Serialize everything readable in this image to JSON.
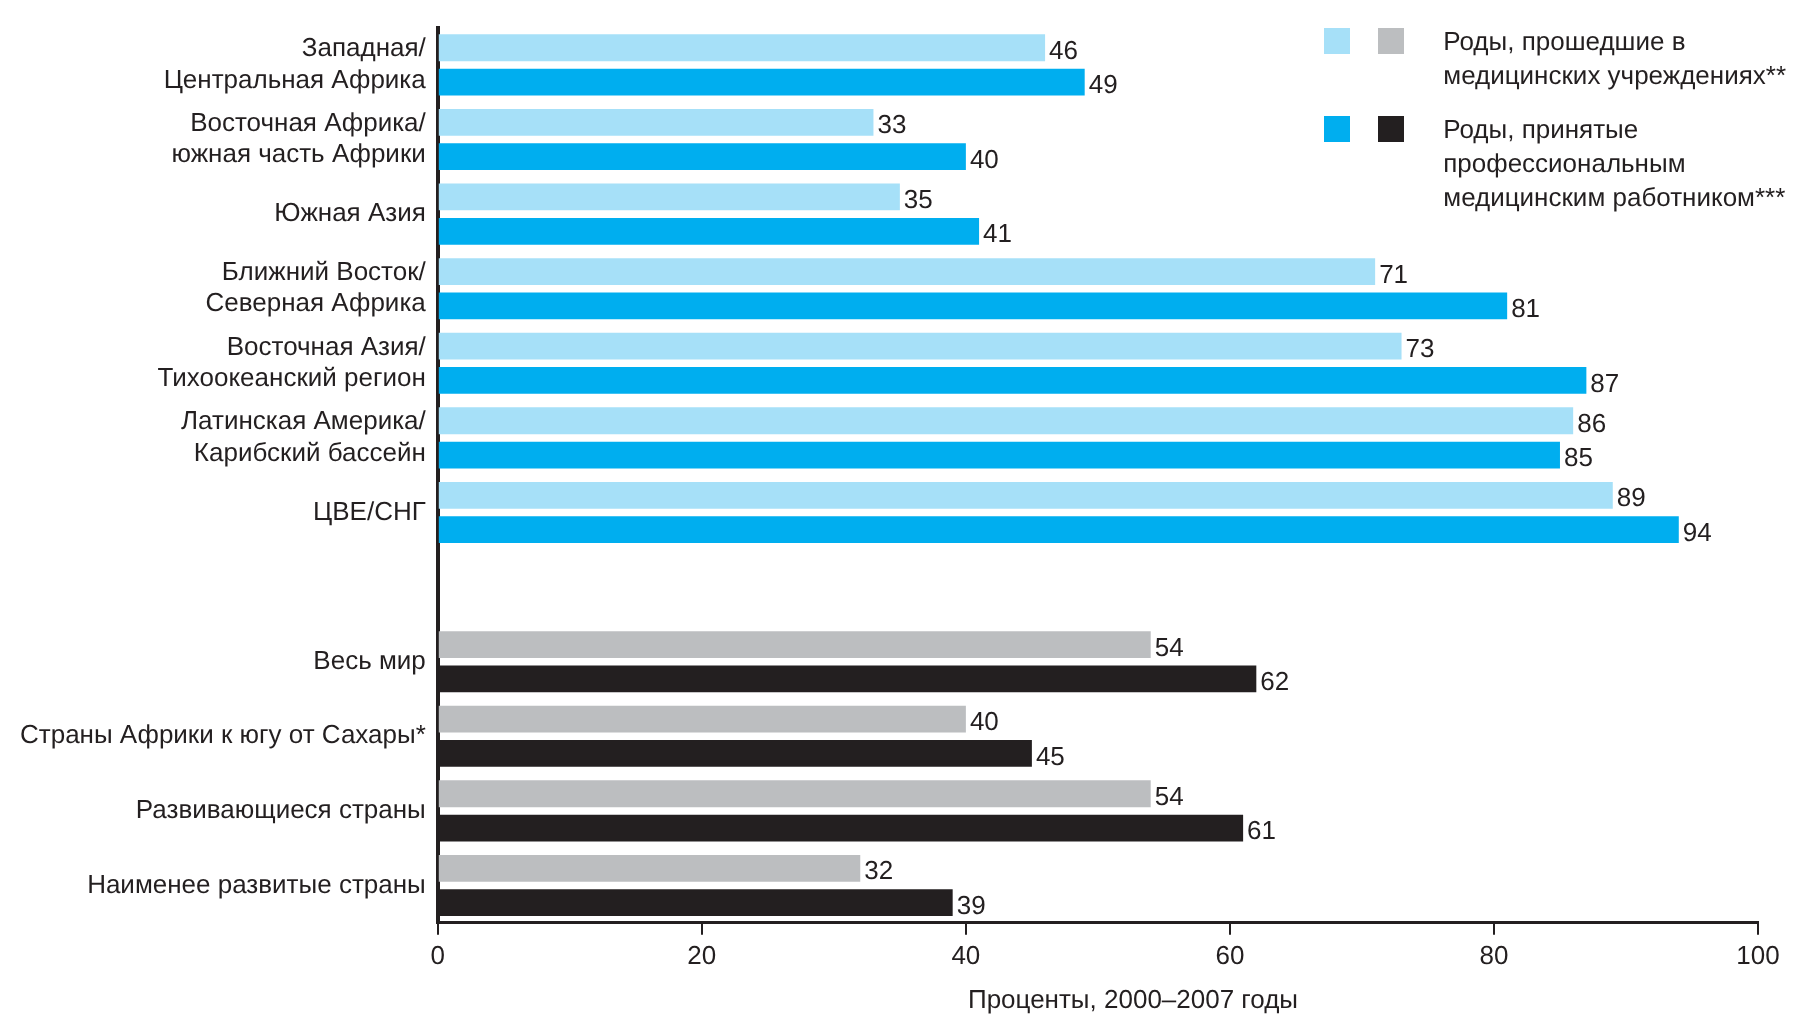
{
  "chart_data": {
    "type": "bar",
    "orientation": "horizontal",
    "xlabel": "Проценты, 2000–2007 годы",
    "categories": [
      "Западная/\nЦентральная Африка",
      "Восточная Африка/\nюжная часть Африки",
      "Южная Азия",
      "Ближний Восток/\nСеверная Африка",
      "Восточная Азия/\nТихоокеанский регион",
      "Латинская Америка/\nКарибский бассейн",
      "ЦВЕ/СНГ",
      null,
      "Весь мир",
      "Страны Африки к югу от Сахары*",
      "Развивающиеся страны",
      "Наименее развитые страны"
    ],
    "series": [
      {
        "name": "Роды, прошедшие в\nмедицинских учреждениях**",
        "values": [
          46,
          33,
          35,
          71,
          73,
          86,
          89,
          null,
          54,
          40,
          54,
          32
        ],
        "colors": [
          "#a6e0f8",
          "#a6e0f8",
          "#a6e0f8",
          "#a6e0f8",
          "#a6e0f8",
          "#a6e0f8",
          "#a6e0f8",
          "#a6e0f8",
          "#bcbec0",
          "#bcbec0",
          "#bcbec0",
          "#bcbec0"
        ]
      },
      {
        "name": "Роды, принятые\nпрофессиональным\nмедицинским работником***",
        "values": [
          49,
          40,
          41,
          81,
          87,
          85,
          94,
          null,
          62,
          45,
          61,
          39
        ],
        "colors": [
          "#00aeef",
          "#00aeef",
          "#00aeef",
          "#00aeef",
          "#00aeef",
          "#00aeef",
          "#00aeef",
          "#00aeef",
          "#231f20",
          "#231f20",
          "#231f20",
          "#231f20"
        ]
      }
    ],
    "xlim": [
      0,
      100
    ],
    "xticks": [
      0,
      20,
      40,
      60,
      80,
      100
    ],
    "grid": false,
    "legend": "top right",
    "data_labels": true
  }
}
